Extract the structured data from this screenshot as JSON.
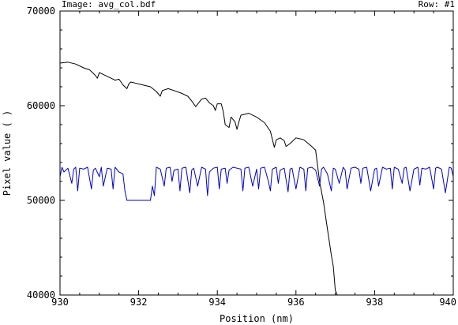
{
  "header": {
    "image_label": "Image: avg_col.bdf",
    "row_label": "Row: #1"
  },
  "chart_data": {
    "type": "line",
    "title": "",
    "xlabel": "Position (nm)",
    "ylabel": "Pixel value ( )",
    "xlim": [
      930,
      940
    ],
    "ylim": [
      40000,
      70000
    ],
    "x_ticks": [
      930,
      932,
      934,
      936,
      938,
      940
    ],
    "x_tick_labels": [
      "930",
      "932",
      "934",
      "936",
      "938",
      "940"
    ],
    "y_ticks": [
      40000,
      50000,
      60000,
      70000
    ],
    "y_tick_labels": [
      "40000",
      "50000",
      "60000",
      "70000"
    ],
    "grid": false,
    "colors": {
      "axes": "#000000",
      "series_1": "#000000",
      "series_2": "#0000cc"
    },
    "series": [
      {
        "color": "#000000",
        "x": [
          930.0,
          930.2,
          930.4,
          930.6,
          930.75,
          930.9,
          930.95,
          931.0,
          931.1,
          931.3,
          931.4,
          931.5,
          931.6,
          931.7,
          931.75,
          931.8,
          931.9,
          932.1,
          932.3,
          932.45,
          932.55,
          932.6,
          932.75,
          932.9,
          933.1,
          933.25,
          933.35,
          933.45,
          933.6,
          933.7,
          933.8,
          933.9,
          933.95,
          934.0,
          934.1,
          934.15,
          934.2,
          934.3,
          934.35,
          934.45,
          934.5,
          934.55,
          934.6,
          934.8,
          935.0,
          935.2,
          935.35,
          935.45,
          935.5,
          935.6,
          935.7,
          935.75,
          935.85,
          936.0,
          936.2,
          936.4,
          936.5,
          936.6,
          936.7,
          936.8,
          936.9,
          936.95,
          937.0,
          937.05
        ],
        "values": [
          64500,
          64600,
          64400,
          64000,
          63800,
          63200,
          62900,
          63500,
          63300,
          62900,
          62700,
          62800,
          62200,
          61800,
          62300,
          62500,
          62400,
          62200,
          62000,
          61500,
          61000,
          61600,
          61800,
          61600,
          61300,
          61000,
          60500,
          59900,
          60700,
          60800,
          60300,
          60000,
          59500,
          60200,
          60200,
          59400,
          58000,
          57700,
          58800,
          58300,
          57500,
          58300,
          59000,
          59200,
          58800,
          58200,
          57300,
          55600,
          56400,
          56600,
          56300,
          55700,
          56000,
          56600,
          56400,
          55700,
          55300,
          52000,
          49800,
          47000,
          44200,
          43000,
          40500,
          40000
        ]
      },
      {
        "color": "#0000cc",
        "x": [
          930.0,
          930.05,
          930.1,
          930.2,
          930.3,
          930.35,
          930.4,
          930.45,
          930.5,
          930.6,
          930.7,
          930.8,
          930.85,
          930.9,
          931.0,
          931.05,
          931.1,
          931.2,
          931.3,
          931.35,
          931.4,
          931.5,
          931.6,
          931.65,
          931.7,
          931.72,
          932.0,
          932.3,
          932.35,
          932.4,
          932.45,
          932.55,
          932.65,
          932.7,
          932.8,
          932.85,
          932.9,
          933.0,
          933.05,
          933.1,
          933.2,
          933.3,
          933.35,
          933.4,
          933.5,
          933.6,
          933.7,
          933.75,
          933.8,
          933.9,
          934.0,
          934.05,
          934.1,
          934.2,
          934.25,
          934.3,
          934.4,
          934.5,
          934.6,
          934.65,
          934.7,
          934.8,
          934.9,
          935.0,
          935.05,
          935.1,
          935.2,
          935.3,
          935.35,
          935.4,
          935.5,
          935.55,
          935.6,
          935.7,
          935.8,
          935.85,
          935.9,
          936.0,
          936.1,
          936.2,
          936.25,
          936.3,
          936.4,
          936.5,
          936.6,
          936.65,
          936.7,
          936.8,
          936.9,
          936.95,
          937.0,
          937.1,
          937.2,
          937.25,
          937.3,
          937.4,
          937.5,
          937.6,
          937.65,
          937.7,
          937.8,
          937.9,
          938.0,
          938.05,
          938.1,
          938.2,
          938.3,
          938.4,
          938.45,
          938.5,
          938.6,
          938.7,
          938.75,
          938.8,
          938.9,
          939.0,
          939.1,
          939.15,
          939.2,
          939.3,
          939.4,
          939.5,
          939.55,
          939.6,
          939.7,
          939.8,
          939.9,
          939.95,
          940.0
        ],
        "values": [
          52500,
          53500,
          53000,
          53400,
          51800,
          53300,
          53500,
          51000,
          53400,
          53300,
          53500,
          51200,
          53200,
          53400,
          52500,
          53500,
          51500,
          53400,
          53300,
          51200,
          53500,
          53000,
          52800,
          51000,
          50000,
          50000,
          50000,
          50000,
          51500,
          50500,
          53500,
          53300,
          51500,
          53400,
          53500,
          52000,
          53200,
          53300,
          51000,
          53400,
          53500,
          50800,
          53200,
          53400,
          51500,
          53500,
          53300,
          50500,
          53000,
          53400,
          53500,
          51200,
          53300,
          53400,
          51800,
          53200,
          53500,
          53400,
          53300,
          51000,
          53400,
          53500,
          51500,
          53300,
          51200,
          53400,
          53500,
          52000,
          51000,
          53300,
          53500,
          51800,
          53200,
          53400,
          50900,
          53300,
          53400,
          51200,
          53500,
          53300,
          51000,
          53400,
          53500,
          53200,
          51500,
          53300,
          53500,
          52800,
          51000,
          53400,
          53300,
          51800,
          53500,
          53200,
          51200,
          53400,
          53500,
          53300,
          51800,
          53400,
          53500,
          51000,
          53300,
          53400,
          51500,
          53500,
          53300,
          53400,
          51200,
          53500,
          53300,
          51800,
          53400,
          53500,
          51000,
          53300,
          53500,
          51600,
          53400,
          53300,
          53500,
          51200,
          53400,
          53500,
          53300,
          50800,
          53500,
          53400,
          52500
        ]
      }
    ]
  }
}
